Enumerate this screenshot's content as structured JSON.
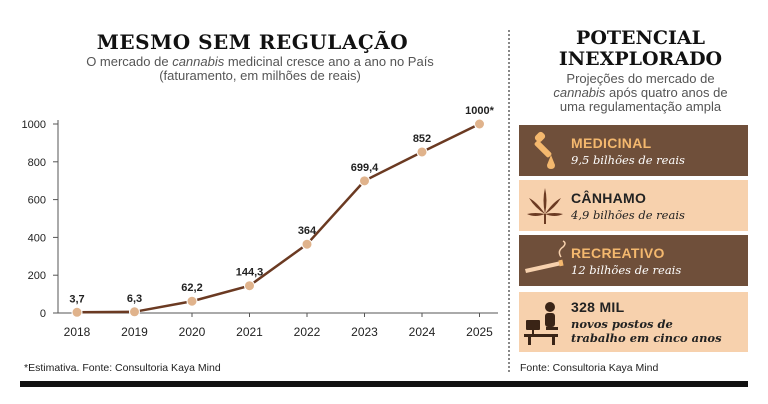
{
  "left": {
    "title": "MESMO SEM REGULAÇÃO",
    "subtitle_1a": "O mercado de ",
    "subtitle_1b": "cannabis",
    "subtitle_1c": " medicinal cresce ano a ano no País",
    "subtitle_2": "(faturamento, em milhões de reais)",
    "footnote": "*Estimativa. Fonte: Consultoria Kaya Mind"
  },
  "chart_data": {
    "type": "line",
    "title": "MESMO SEM REGULAÇÃO",
    "xlabel": "",
    "ylabel": "faturamento, em milhões de reais",
    "categories": [
      "2018",
      "2019",
      "2020",
      "2021",
      "2022",
      "2023",
      "2024",
      "2025"
    ],
    "values": [
      3.7,
      6.3,
      62.2,
      144.3,
      364,
      699.4,
      852,
      1000
    ],
    "data_labels": [
      "3,7",
      "6,3",
      "62,2",
      "144,3",
      "364",
      "699,4",
      "852",
      "1000*"
    ],
    "yticks": [
      0,
      200,
      400,
      600,
      800,
      1000
    ],
    "ylim": [
      0,
      1000
    ],
    "grid": false,
    "colors": {
      "line": "#6b3a22",
      "marker": "#e0b38c"
    }
  },
  "right": {
    "title_line1": "POTENCIAL",
    "title_line2": "INEXPLORADO",
    "subtitle_1": "Projeções do mercado de",
    "subtitle_2a": "cannabis",
    "subtitle_2b": " após quatro anos de",
    "subtitle_3": "uma regulamentação ampla",
    "footnote": "Fonte: Consultoria Kaya Mind",
    "cards": [
      {
        "title": "MEDICINAL",
        "value": "9,5 bilhões de reais",
        "icon": "dropper-icon"
      },
      {
        "title": "CÂNHAMO",
        "value": "4,9 bilhões de reais",
        "icon": "cannabis-leaf-icon"
      },
      {
        "title": "RECREATIVO",
        "value": "12 bilhões de reais",
        "icon": "joint-icon"
      },
      {
        "title": "328 MIL",
        "value_line1": "novos postos de",
        "value_line2": "trabalho em cinco anos",
        "icon": "worker-at-desk-icon"
      }
    ]
  },
  "colors": {
    "dark_card": "#6f4f3a",
    "light_card": "#f7d1ad",
    "accent_text": "#f4b86e"
  }
}
